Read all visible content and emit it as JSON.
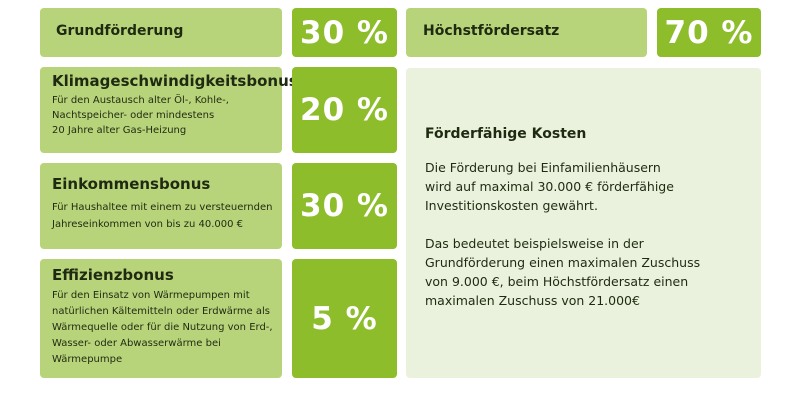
{
  "colors": {
    "light_green": "#b8d47a",
    "dark_green": "#8dbd2b",
    "pale_green": "#eaf1dc"
  },
  "grundfoerderung": {
    "label": "Grundförderung",
    "value": "30 %"
  },
  "hoechstfoerdersatz": {
    "label": "Höchstfördersatz",
    "value": "70 %"
  },
  "boni": [
    {
      "title": "Klimageschwindigkeitsbonus",
      "lines": [
        "Für den Austausch alter Öl-, Kohle-,",
        "Nachtspeicher- oder mindestens",
        "20 Jahre alter Gas-Heizung"
      ],
      "value": "20 %"
    },
    {
      "title": "Einkommensbonus",
      "lines": [
        "Für Haushaltee mit einem zu versteuernden",
        "Jahreseinkommen von bis zu 40.000 €"
      ],
      "value": "30 %"
    },
    {
      "title": "Effizienzbonus",
      "lines": [
        "Für den Einsatz von Wärmepumpen mit",
        "natürlichen Kältemitteln oder Erdwärme als",
        "Wärmequelle oder für die Nutzung von Erd-,",
        "Wasser- oder Abwasserwärme bei",
        "Wärmepumpe"
      ],
      "value": "5 %"
    }
  ],
  "kosten": {
    "title": "Förderfähige Kosten",
    "p1": [
      "Die Förderung bei Einfamilienhäusern",
      "wird auf maximal 30.000 € förderfähige",
      "Investitionskosten gewährt."
    ],
    "p2": [
      "Das bedeutet beispielsweise in der",
      "Grundförderung einen maximalen Zuschuss",
      "von 9.000 €, beim Höchstfördersatz einen",
      "maximalen Zuschuss von 21.000€"
    ]
  }
}
